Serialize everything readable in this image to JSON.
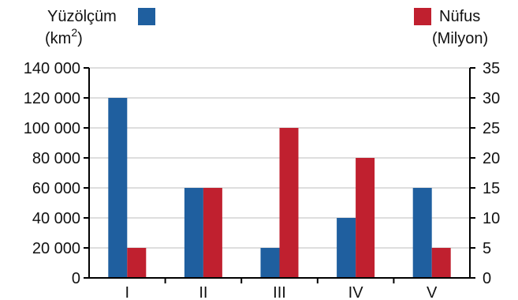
{
  "chart_data": {
    "type": "bar",
    "categories": [
      "I",
      "II",
      "III",
      "IV",
      "V"
    ],
    "series": [
      {
        "name": "Yüzölçüm",
        "axis": "left",
        "color": "#1f5f9f",
        "values": [
          120000,
          60000,
          20000,
          40000,
          60000
        ]
      },
      {
        "name": "Nüfus",
        "axis": "right",
        "color": "#c0202f",
        "values": [
          5,
          15,
          25,
          20,
          5
        ]
      }
    ],
    "left_axis": {
      "label_line1": "Yüzölçüm",
      "label_line2_base": "(km",
      "label_line2_sup": "2",
      "label_line2_end": ")",
      "ylim": [
        0,
        140000
      ],
      "ticks": [
        0,
        20000,
        40000,
        60000,
        80000,
        100000,
        120000,
        140000
      ],
      "tick_labels": [
        "0",
        "20 000",
        "40 000",
        "60 000",
        "80 000",
        "100 000",
        "120 000",
        "140 000"
      ]
    },
    "right_axis": {
      "label_line1": "Nüfus",
      "label_line2": "(Milyon)",
      "ylim": [
        0,
        35
      ],
      "ticks": [
        0,
        5,
        10,
        15,
        20,
        25,
        30,
        35
      ],
      "tick_labels": [
        "0",
        "5",
        "10",
        "15",
        "20",
        "25",
        "30",
        "35"
      ]
    },
    "grid": true,
    "legend_placement": "top-left and top-right"
  }
}
